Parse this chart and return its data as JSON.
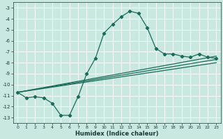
{
  "xlabel": "Humidex (Indice chaleur)",
  "xlim": [
    -0.5,
    23.5
  ],
  "ylim": [
    -13.5,
    -2.5
  ],
  "yticks": [
    -13,
    -12,
    -11,
    -10,
    -9,
    -8,
    -7,
    -6,
    -5,
    -4,
    -3
  ],
  "xticks": [
    0,
    1,
    2,
    3,
    4,
    5,
    6,
    7,
    8,
    9,
    10,
    11,
    12,
    13,
    14,
    15,
    16,
    17,
    18,
    19,
    20,
    21,
    22,
    23
  ],
  "bg_color": "#c8e8e0",
  "line_color": "#1a6b5a",
  "grid_color": "#ffffff",
  "main_x": [
    0,
    1,
    2,
    3,
    4,
    5,
    6,
    7,
    8,
    9,
    10,
    11,
    12,
    13,
    14,
    15,
    16,
    17,
    18,
    19,
    20,
    21,
    22,
    23
  ],
  "main_y": [
    -10.7,
    -11.2,
    -11.1,
    -11.2,
    -11.7,
    -12.8,
    -12.8,
    -11.1,
    -9.0,
    -7.6,
    -5.3,
    -4.5,
    -3.8,
    -3.3,
    -3.5,
    -4.8,
    -6.7,
    -7.2,
    -7.2,
    -7.4,
    -7.5,
    -7.2,
    -7.5,
    -7.6
  ],
  "trend1_x": [
    0,
    23
  ],
  "trend1_y": [
    -10.7,
    -7.4
  ],
  "trend2_x": [
    0,
    23
  ],
  "trend2_y": [
    -10.7,
    -7.7
  ],
  "trend3_x": [
    0,
    23
  ],
  "trend3_y": [
    -10.7,
    -8.0
  ]
}
